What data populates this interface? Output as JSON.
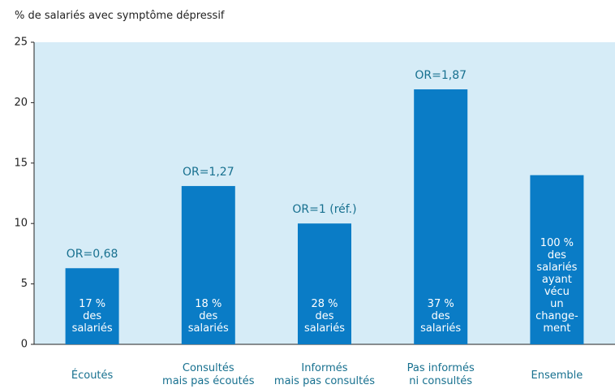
{
  "chart_data": {
    "type": "bar",
    "y_label": "% de salariés avec symptôme dépressif",
    "categories": [
      "Écoutés",
      "Consultés\nmais pas écoutés",
      "Informés\nmais pas consultés",
      "Pas informés\nni consultés",
      "Ensemble"
    ],
    "values": [
      6.3,
      13.1,
      10,
      21.1,
      14
    ],
    "color": "#0a7cc6",
    "background": "#d6ecf7",
    "annotations": [
      "OR=0,68",
      "OR=1,27",
      "OR=1 (réf.)",
      "OR=1,87",
      null
    ],
    "bar_notes": [
      "17 %\ndes\nsalariés",
      "18 %\ndes\nsalariés",
      "28 %\ndes\nsalariés",
      "37 %\ndes\nsalariés",
      "100 %\ndes\nsalariés\nayant\nvécu\nun\nchange-\nment"
    ],
    "ylim": [
      0,
      25
    ],
    "yticks": [
      0,
      5,
      10,
      15,
      20,
      25
    ],
    "grid": false
  }
}
